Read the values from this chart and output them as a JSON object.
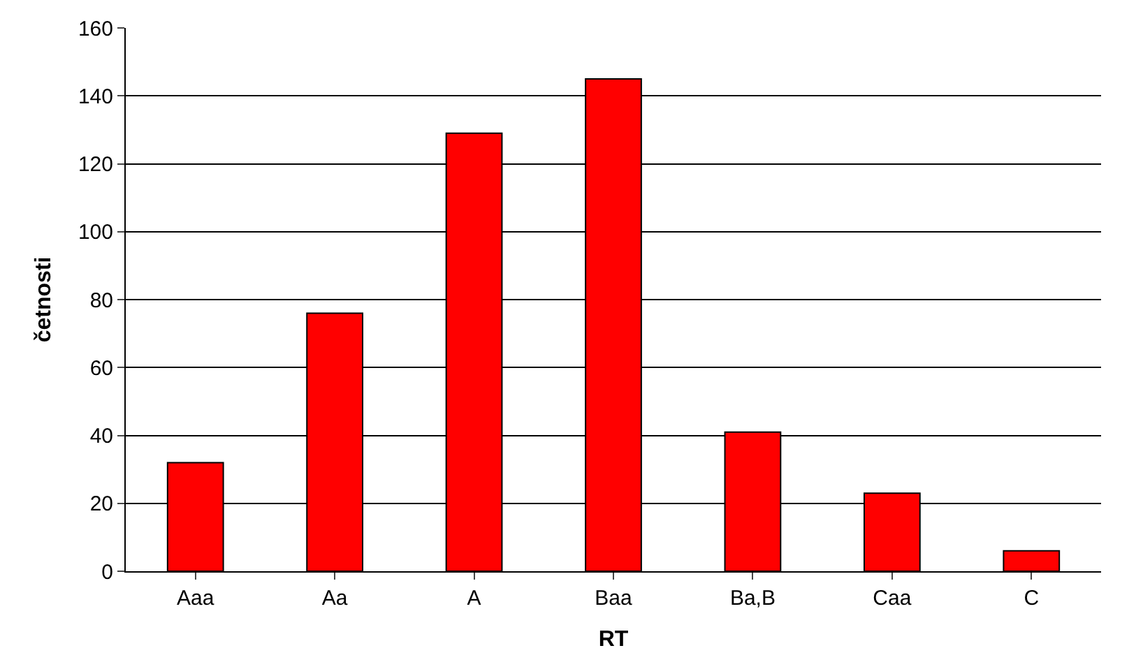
{
  "chart_data": {
    "type": "bar",
    "xlabel": "RT",
    "ylabel": "četnosti",
    "categories": [
      "Aaa",
      "Aa",
      "A",
      "Baa",
      "Ba,B",
      "Caa",
      "C"
    ],
    "values": [
      32,
      76,
      129,
      145,
      41,
      23,
      6
    ],
    "color": "#ff0000",
    "ylim": [
      0,
      160
    ],
    "yticks": [
      0,
      20,
      40,
      60,
      80,
      100,
      120,
      140,
      160
    ],
    "grid": "y"
  }
}
